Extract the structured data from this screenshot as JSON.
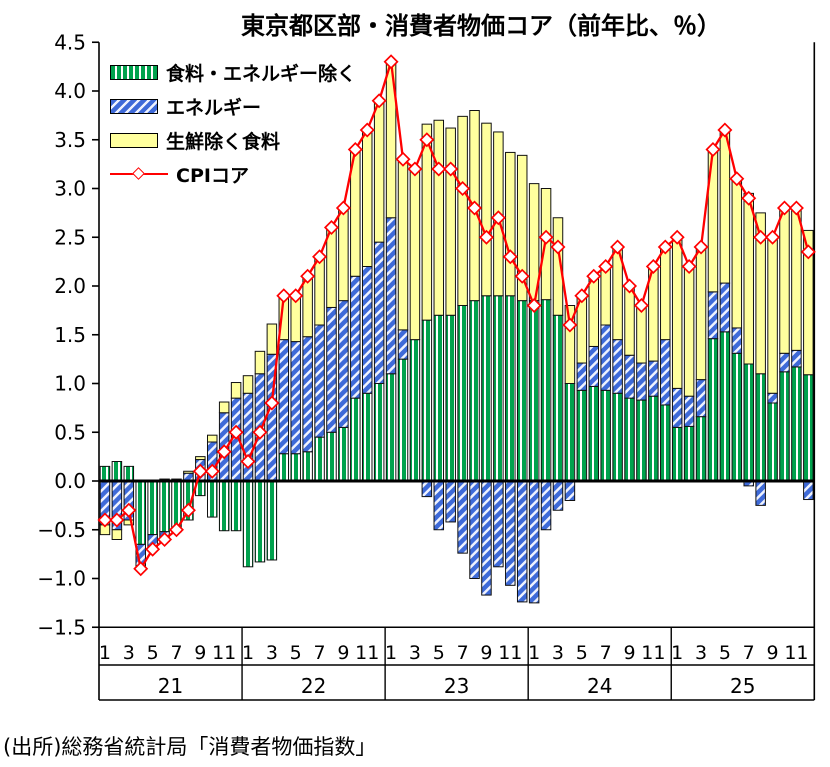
{
  "title": "東京都区部・消費者物価コア（前年比、％）",
  "source": "(出所)総務省統計局「消費者物価指数」",
  "colors": {
    "ex_food_energy": "#00A24D",
    "energy": "#3E6AD8",
    "food_ex_fresh": "#FFFF9E",
    "cpi_line": "#FF0000",
    "bar_border": "#111111",
    "axis": "#000000"
  },
  "legend": [
    {
      "label": "食料・エネルギー除く",
      "type": "bar-green-hatch"
    },
    {
      "label": "エネルギー",
      "type": "bar-blue-hatch"
    },
    {
      "label": "生鮮除く食料",
      "type": "bar-yellow"
    },
    {
      "label": "CPIコア",
      "type": "line-diamond"
    }
  ],
  "chart_data": {
    "type": "bar",
    "subtype": "stacked-bar-with-line",
    "title": "東京都区部・消費者物価コア（前年比、％）",
    "xlabel": "",
    "ylabel": "",
    "ylim": [
      -1.5,
      4.5
    ],
    "ytick_step": 0.5,
    "grid": false,
    "legend_position": "top-left-inside",
    "y_tick_labels": [
      "4.5",
      "4.0",
      "3.5",
      "3.0",
      "2.5",
      "2.0",
      "1.5",
      "1.0",
      "0.5",
      "0.0",
      "−0.5",
      "−1.0",
      "−1.5"
    ],
    "years": [
      {
        "label": "21",
        "month_ticks": [
          "1",
          "3",
          "5",
          "7",
          "9",
          "11"
        ]
      },
      {
        "label": "22",
        "month_ticks": [
          "1",
          "3",
          "5",
          "7",
          "9",
          "11"
        ]
      },
      {
        "label": "23",
        "month_ticks": [
          "1",
          "3",
          "5",
          "7",
          "9",
          "11"
        ]
      },
      {
        "label": "24",
        "month_ticks": [
          "1",
          "3",
          "5",
          "7",
          "9",
          "11"
        ]
      },
      {
        "label": "25",
        "month_ticks": [
          "1",
          "3",
          "5",
          "7",
          "9",
          "11"
        ]
      }
    ],
    "months_per_year": 12,
    "series": [
      {
        "name": "食料・エネルギー除く",
        "type": "bar",
        "style": "green-hatch",
        "values": [
          0.15,
          0.2,
          0.15,
          -0.65,
          -0.55,
          -0.52,
          -0.5,
          -0.4,
          -0.15,
          -0.37,
          -0.51,
          -0.51,
          -0.88,
          -0.83,
          -0.81,
          0.28,
          0.28,
          0.3,
          0.45,
          0.5,
          0.55,
          0.85,
          0.9,
          1.0,
          1.1,
          1.25,
          1.45,
          1.65,
          1.7,
          1.7,
          1.8,
          1.85,
          1.9,
          1.9,
          1.9,
          1.85,
          1.85,
          1.86,
          1.7,
          1.0,
          0.93,
          0.97,
          0.93,
          0.9,
          0.85,
          0.83,
          0.87,
          0.78,
          0.55,
          0.56,
          0.66,
          1.46,
          1.53,
          1.31,
          1.2,
          1.1,
          0.8,
          1.12,
          1.17,
          1.09
        ]
      },
      {
        "name": "エネルギー",
        "type": "bar",
        "style": "blue-hatch",
        "values": [
          -0.45,
          -0.5,
          -0.4,
          -0.22,
          -0.13,
          -0.1,
          -0.02,
          0.08,
          0.22,
          0.4,
          0.7,
          0.85,
          0.9,
          1.1,
          1.3,
          1.17,
          1.15,
          1.18,
          1.15,
          1.28,
          1.3,
          1.25,
          1.3,
          1.45,
          1.6,
          0.3,
          0.0,
          -0.16,
          -0.5,
          -0.42,
          -0.74,
          -1.0,
          -1.17,
          -0.88,
          -1.07,
          -1.24,
          -1.25,
          -0.5,
          -0.3,
          -0.2,
          0.28,
          0.41,
          0.67,
          0.55,
          0.44,
          0.38,
          0.36,
          0.67,
          0.4,
          0.31,
          0.38,
          0.48,
          0.5,
          0.26,
          -0.05,
          -0.25,
          0.1,
          0.19,
          0.17,
          -0.19
        ]
      },
      {
        "name": "生鮮除く食料",
        "type": "bar",
        "style": "yellow",
        "values": [
          -0.1,
          -0.1,
          -0.05,
          -0.03,
          -0.02,
          0.02,
          0.02,
          0.02,
          0.03,
          0.07,
          0.11,
          0.16,
          0.18,
          0.23,
          0.31,
          0.45,
          0.47,
          0.62,
          0.7,
          0.82,
          0.95,
          1.3,
          1.4,
          1.45,
          1.6,
          1.75,
          1.75,
          2.01,
          2.0,
          1.92,
          1.94,
          1.95,
          1.77,
          1.68,
          1.47,
          1.49,
          1.2,
          1.14,
          1.0,
          0.8,
          0.69,
          0.72,
          0.6,
          0.95,
          0.71,
          0.59,
          0.97,
          0.95,
          1.55,
          1.33,
          1.36,
          1.46,
          1.57,
          1.53,
          1.75,
          1.65,
          1.6,
          1.47,
          1.46,
          1.48
        ]
      },
      {
        "name": "CPIコア",
        "type": "line",
        "style": "red-diamond",
        "values": [
          -0.4,
          -0.4,
          -0.3,
          -0.9,
          -0.7,
          -0.6,
          -0.5,
          -0.3,
          0.1,
          0.1,
          0.3,
          0.5,
          0.2,
          0.5,
          0.8,
          1.9,
          1.9,
          2.1,
          2.3,
          2.6,
          2.8,
          3.4,
          3.6,
          3.9,
          4.3,
          3.3,
          3.2,
          3.5,
          3.2,
          3.2,
          3.0,
          2.8,
          2.5,
          2.7,
          2.3,
          2.1,
          1.8,
          2.5,
          2.4,
          1.6,
          1.9,
          2.1,
          2.2,
          2.4,
          2.0,
          1.8,
          2.2,
          2.4,
          2.5,
          2.2,
          2.4,
          3.4,
          3.6,
          3.1,
          2.9,
          2.5,
          2.5,
          2.8,
          2.8,
          2.35
        ]
      }
    ]
  }
}
